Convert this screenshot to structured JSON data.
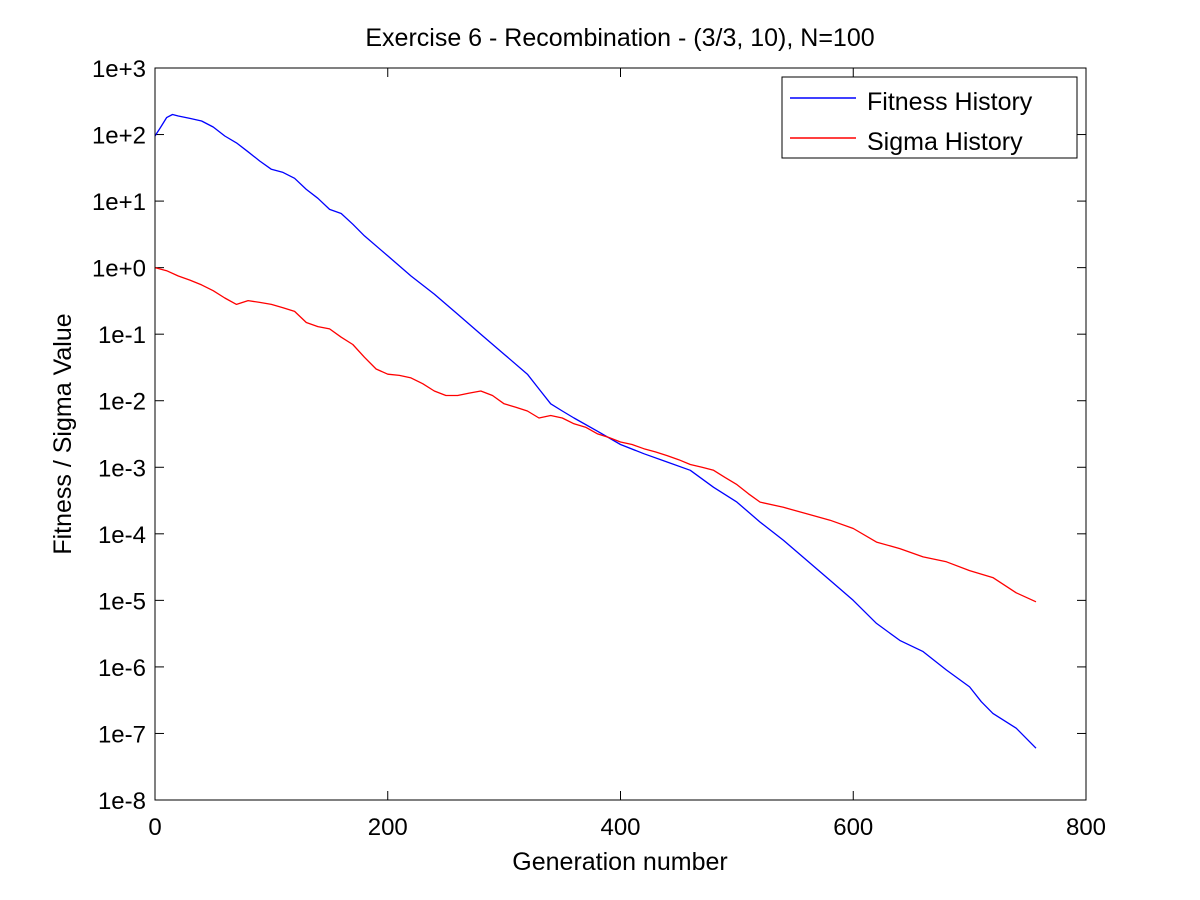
{
  "chart_data": {
    "type": "line",
    "title": "Exercise 6 - Recombination - (3/3, 10), N=100",
    "xlabel": "Generation number",
    "ylabel": "Fitness / Sigma Value",
    "xlim": [
      0,
      800
    ],
    "ylim": [
      1e-08,
      1000
    ],
    "yscale": "log",
    "grid": false,
    "legend_position": "top-right",
    "x_ticks": [
      0,
      200,
      400,
      600,
      800
    ],
    "x_tick_labels": [
      "0",
      "200",
      "400",
      "600",
      "800"
    ],
    "y_ticks": [
      1e-08,
      1e-07,
      1e-06,
      1e-05,
      0.0001,
      0.001,
      0.01,
      0.1,
      1,
      10,
      100,
      1000
    ],
    "y_tick_labels": [
      "1e-8",
      "1e-7",
      "1e-6",
      "1e-5",
      "1e-4",
      "1e-3",
      "1e-2",
      "1e-1",
      "1e+0",
      "1e+1",
      "1e+2",
      "1e+3"
    ],
    "series": [
      {
        "name": "Fitness History",
        "color": "#0000ff",
        "points": [
          [
            0,
            95
          ],
          [
            5,
            130
          ],
          [
            10,
            180
          ],
          [
            15,
            200
          ],
          [
            20,
            190
          ],
          [
            30,
            175
          ],
          [
            40,
            160
          ],
          [
            50,
            130
          ],
          [
            60,
            95
          ],
          [
            70,
            75
          ],
          [
            80,
            55
          ],
          [
            90,
            40
          ],
          [
            100,
            30
          ],
          [
            110,
            27
          ],
          [
            120,
            22
          ],
          [
            130,
            15
          ],
          [
            140,
            11
          ],
          [
            150,
            7.5
          ],
          [
            160,
            6.5
          ],
          [
            170,
            4.5
          ],
          [
            180,
            3
          ],
          [
            200,
            1.5
          ],
          [
            220,
            0.75
          ],
          [
            240,
            0.4
          ],
          [
            260,
            0.2
          ],
          [
            280,
            0.1
          ],
          [
            300,
            0.05
          ],
          [
            320,
            0.025
          ],
          [
            330,
            0.015
          ],
          [
            340,
            0.009
          ],
          [
            350,
            0.007
          ],
          [
            360,
            0.0055
          ],
          [
            380,
            0.0035
          ],
          [
            400,
            0.0022
          ],
          [
            420,
            0.0016
          ],
          [
            440,
            0.0012
          ],
          [
            460,
            0.0009
          ],
          [
            480,
            0.0005
          ],
          [
            500,
            0.0003
          ],
          [
            520,
            0.00015
          ],
          [
            540,
            8e-05
          ],
          [
            560,
            4e-05
          ],
          [
            580,
            2e-05
          ],
          [
            600,
            1e-05
          ],
          [
            620,
            4.5e-06
          ],
          [
            640,
            2.5e-06
          ],
          [
            660,
            1.7e-06
          ],
          [
            680,
            9e-07
          ],
          [
            700,
            5e-07
          ],
          [
            710,
            3e-07
          ],
          [
            720,
            2e-07
          ],
          [
            740,
            1.2e-07
          ],
          [
            757,
            6e-08
          ]
        ]
      },
      {
        "name": "Sigma History",
        "color": "#ff0000",
        "points": [
          [
            0,
            1.0
          ],
          [
            10,
            0.9
          ],
          [
            20,
            0.75
          ],
          [
            30,
            0.65
          ],
          [
            40,
            0.55
          ],
          [
            50,
            0.45
          ],
          [
            60,
            0.35
          ],
          [
            70,
            0.28
          ],
          [
            80,
            0.32
          ],
          [
            90,
            0.3
          ],
          [
            100,
            0.28
          ],
          [
            110,
            0.25
          ],
          [
            120,
            0.22
          ],
          [
            130,
            0.15
          ],
          [
            140,
            0.13
          ],
          [
            150,
            0.12
          ],
          [
            160,
            0.09
          ],
          [
            170,
            0.07
          ],
          [
            180,
            0.045
          ],
          [
            190,
            0.03
          ],
          [
            200,
            0.025
          ],
          [
            210,
            0.024
          ],
          [
            220,
            0.022
          ],
          [
            230,
            0.018
          ],
          [
            240,
            0.014
          ],
          [
            250,
            0.012
          ],
          [
            260,
            0.012
          ],
          [
            270,
            0.013
          ],
          [
            280,
            0.014
          ],
          [
            290,
            0.012
          ],
          [
            300,
            0.009
          ],
          [
            310,
            0.008
          ],
          [
            320,
            0.007
          ],
          [
            330,
            0.0055
          ],
          [
            340,
            0.006
          ],
          [
            350,
            0.0055
          ],
          [
            360,
            0.0045
          ],
          [
            370,
            0.004
          ],
          [
            380,
            0.0032
          ],
          [
            390,
            0.0028
          ],
          [
            400,
            0.0024
          ],
          [
            410,
            0.0022
          ],
          [
            420,
            0.0019
          ],
          [
            430,
            0.0017
          ],
          [
            440,
            0.0015
          ],
          [
            450,
            0.0013
          ],
          [
            460,
            0.0011
          ],
          [
            470,
            0.001
          ],
          [
            480,
            0.0009
          ],
          [
            490,
            0.0007
          ],
          [
            500,
            0.00055
          ],
          [
            510,
            0.0004
          ],
          [
            520,
            0.0003
          ],
          [
            540,
            0.00025
          ],
          [
            560,
            0.0002
          ],
          [
            580,
            0.00016
          ],
          [
            600,
            0.00012
          ],
          [
            620,
            7.5e-05
          ],
          [
            640,
            6e-05
          ],
          [
            660,
            4.5e-05
          ],
          [
            680,
            3.8e-05
          ],
          [
            700,
            2.8e-05
          ],
          [
            720,
            2.2e-05
          ],
          [
            740,
            1.3e-05
          ],
          [
            757,
            9.5e-06
          ]
        ]
      }
    ]
  }
}
